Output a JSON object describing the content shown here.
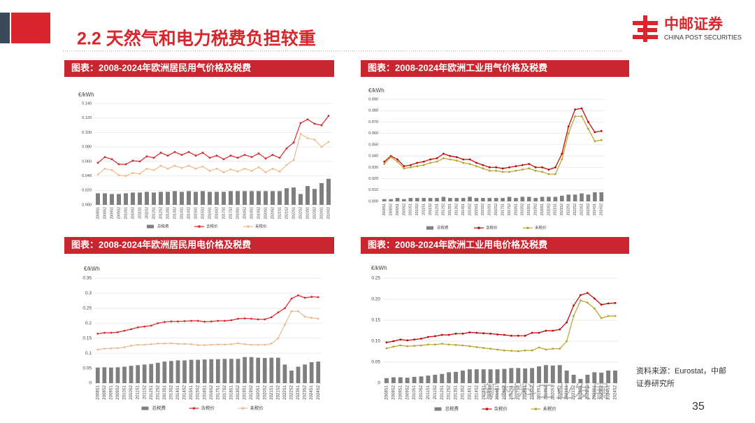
{
  "header": {
    "title": "2.2 天然气和电力税费负担较重",
    "logo": "中邮证券",
    "logo_en": "CHINA POST SECURITIES"
  },
  "source": "资料来源：Eurostat，中邮证券研究所",
  "page_number": "35",
  "watermark": "新材料工业发展",
  "chart_data": [
    {
      "type": "combo",
      "title": "图表：2008-2024年欧洲居民用气价格及税费",
      "ylabel": "€/kWh",
      "categories": [
        "2008S1",
        "2008S2",
        "2009S1",
        "2009S2",
        "2010S1",
        "2010S2",
        "2011S1",
        "2011S2",
        "2012S1",
        "2012S2",
        "2013S1",
        "2013S2",
        "2014S1",
        "2014S2",
        "2015S1",
        "2015S2",
        "2016S1",
        "2016S2",
        "2017S1",
        "2017S2",
        "2018S1",
        "2018S2",
        "2019S1",
        "2019S2",
        "2020S1",
        "2020S2",
        "2021S1",
        "2021S2",
        "2022S1",
        "2022S2",
        "2023S1",
        "2023S2",
        "2024S1",
        "2024S2"
      ],
      "ylim": [
        0,
        0.14
      ],
      "yticks": [
        {
          "value": 0,
          "label": "0.000"
        },
        {
          "value": 0.02,
          "label": "0.020"
        },
        {
          "value": 0.04,
          "label": "0.040"
        },
        {
          "value": 0.06,
          "label": "0.060"
        },
        {
          "value": 0.08,
          "label": "0.080"
        },
        {
          "value": 0.1,
          "label": "0.100"
        },
        {
          "value": 0.12,
          "label": "0.120"
        },
        {
          "value": 0.14,
          "label": "0.140"
        }
      ],
      "grid": true,
      "series": [
        {
          "name": "总税费",
          "type": "bar",
          "color": "#7f7f7f",
          "values": [
            0.016,
            0.016,
            0.015,
            0.015,
            0.016,
            0.017,
            0.017,
            0.018,
            0.017,
            0.018,
            0.018,
            0.019,
            0.018,
            0.019,
            0.018,
            0.019,
            0.018,
            0.018,
            0.018,
            0.019,
            0.019,
            0.019,
            0.019,
            0.019,
            0.019,
            0.019,
            0.019,
            0.023,
            0.024,
            0.015,
            0.026,
            0.022,
            0.03,
            0.036
          ]
        },
        {
          "name": "含税价",
          "type": "line",
          "color": "#d9252b",
          "values": [
            0.058,
            0.066,
            0.063,
            0.056,
            0.056,
            0.061,
            0.06,
            0.067,
            0.065,
            0.072,
            0.068,
            0.073,
            0.069,
            0.073,
            0.068,
            0.072,
            0.065,
            0.068,
            0.063,
            0.068,
            0.065,
            0.069,
            0.066,
            0.071,
            0.064,
            0.069,
            0.065,
            0.078,
            0.086,
            0.113,
            0.118,
            0.112,
            0.11,
            0.123
          ]
        },
        {
          "name": "未税价",
          "type": "line",
          "color": "#f0b98a",
          "values": [
            0.042,
            0.05,
            0.048,
            0.041,
            0.04,
            0.044,
            0.043,
            0.05,
            0.048,
            0.054,
            0.05,
            0.054,
            0.051,
            0.054,
            0.05,
            0.053,
            0.047,
            0.05,
            0.045,
            0.049,
            0.046,
            0.05,
            0.047,
            0.052,
            0.045,
            0.05,
            0.046,
            0.055,
            0.062,
            0.098,
            0.092,
            0.09,
            0.08,
            0.087
          ]
        }
      ]
    },
    {
      "type": "combo",
      "title": "图表：2008-2024年欧洲工业用气价格及税费",
      "ylabel": "€/kWh",
      "categories": [
        "2008S1",
        "2008S2",
        "2009S1",
        "2009S2",
        "2010S1",
        "2010S2",
        "2011S1",
        "2011S2",
        "2012S1",
        "2012S2",
        "2013S1",
        "2013S2",
        "2014S1",
        "2014S2",
        "2015S1",
        "2015S2",
        "2016S1",
        "2016S2",
        "2017S1",
        "2017S2",
        "2018S1",
        "2018S2",
        "2019S1",
        "2019S2",
        "2020S1",
        "2020S2",
        "2021S1",
        "2021S2",
        "2022S1",
        "2022S2",
        "2023S1",
        "2023S2",
        "2024S1",
        "2024S2"
      ],
      "ylim": [
        0,
        0.09
      ],
      "yticks": [
        {
          "value": 0,
          "label": "0.000"
        },
        {
          "value": 0.01,
          "label": "0.010"
        },
        {
          "value": 0.02,
          "label": "0.020"
        },
        {
          "value": 0.03,
          "label": "0.030"
        },
        {
          "value": 0.04,
          "label": "0.040"
        },
        {
          "value": 0.05,
          "label": "0.050"
        },
        {
          "value": 0.06,
          "label": "0.060"
        },
        {
          "value": 0.07,
          "label": "0.070"
        },
        {
          "value": 0.08,
          "label": "0.080"
        },
        {
          "value": 0.09,
          "label": "0.090"
        }
      ],
      "grid": true,
      "series": [
        {
          "name": "总税费",
          "type": "bar",
          "color": "#7f7f7f",
          "values": [
            0.002,
            0.002,
            0.003,
            0.002,
            0.003,
            0.003,
            0.003,
            0.003,
            0.003,
            0.004,
            0.003,
            0.003,
            0.003,
            0.004,
            0.003,
            0.003,
            0.003,
            0.003,
            0.003,
            0.004,
            0.003,
            0.004,
            0.004,
            0.003,
            0.004,
            0.004,
            0.004,
            0.005,
            0.006,
            0.006,
            0.007,
            0.006,
            0.008,
            0.008
          ]
        },
        {
          "name": "含税价",
          "type": "line",
          "color": "#c00000",
          "values": [
            0.035,
            0.04,
            0.037,
            0.031,
            0.032,
            0.034,
            0.035,
            0.037,
            0.038,
            0.042,
            0.04,
            0.039,
            0.037,
            0.037,
            0.034,
            0.032,
            0.03,
            0.03,
            0.029,
            0.03,
            0.031,
            0.032,
            0.033,
            0.03,
            0.03,
            0.028,
            0.03,
            0.042,
            0.066,
            0.081,
            0.082,
            0.07,
            0.061,
            0.062
          ]
        },
        {
          "name": "未税价",
          "type": "line",
          "color": "#b5a226",
          "values": [
            0.033,
            0.039,
            0.035,
            0.029,
            0.03,
            0.031,
            0.032,
            0.034,
            0.035,
            0.038,
            0.037,
            0.036,
            0.034,
            0.033,
            0.031,
            0.029,
            0.027,
            0.027,
            0.026,
            0.026,
            0.027,
            0.028,
            0.029,
            0.027,
            0.026,
            0.024,
            0.024,
            0.037,
            0.06,
            0.075,
            0.075,
            0.064,
            0.053,
            0.054
          ]
        }
      ]
    },
    {
      "type": "combo",
      "title": "图表：2008-2024年欧洲居民用电价格及税费",
      "ylabel": "€/kWh",
      "categories": [
        "2008S1",
        "2008S2",
        "2009S1",
        "2009S2",
        "2010S1",
        "2010S2",
        "2011S1",
        "2011S2",
        "2012S1",
        "2012S2",
        "2013S1",
        "2013S2",
        "2014S1",
        "2014S2",
        "2015S1",
        "2015S2",
        "2016S1",
        "2016S2",
        "2017S1",
        "2017S2",
        "2018S1",
        "2018S2",
        "2019S1",
        "2019S2",
        "2020S1",
        "2020S2",
        "2021S1",
        "2021S2",
        "2022S1",
        "2022S2",
        "2023S1",
        "2023S2",
        "2024S1",
        "2024S2"
      ],
      "ylim": [
        0,
        0.35
      ],
      "yticks": [
        0,
        0.05,
        0.1,
        0.15,
        0.2,
        0.25,
        0.3,
        0.35
      ],
      "grid": true,
      "series": [
        {
          "name": "总税费",
          "type": "bar",
          "color": "#7f7f7f",
          "values": [
            0.052,
            0.053,
            0.052,
            0.053,
            0.055,
            0.058,
            0.06,
            0.062,
            0.064,
            0.068,
            0.072,
            0.074,
            0.076,
            0.076,
            0.078,
            0.078,
            0.079,
            0.08,
            0.08,
            0.081,
            0.081,
            0.081,
            0.087,
            0.087,
            0.085,
            0.084,
            0.085,
            0.085,
            0.062,
            0.042,
            0.055,
            0.062,
            0.07,
            0.072
          ]
        },
        {
          "name": "含税价",
          "type": "line",
          "color": "#d9252b",
          "values": [
            0.165,
            0.168,
            0.168,
            0.17,
            0.175,
            0.18,
            0.186,
            0.189,
            0.192,
            0.2,
            0.204,
            0.206,
            0.206,
            0.207,
            0.208,
            0.208,
            0.205,
            0.206,
            0.208,
            0.208,
            0.21,
            0.215,
            0.216,
            0.215,
            0.213,
            0.213,
            0.22,
            0.236,
            0.25,
            0.282,
            0.293,
            0.285,
            0.288,
            0.287
          ]
        },
        {
          "name": "未税价",
          "type": "line",
          "color": "#e8b98c",
          "values": [
            0.112,
            0.115,
            0.116,
            0.117,
            0.12,
            0.125,
            0.128,
            0.128,
            0.13,
            0.132,
            0.132,
            0.133,
            0.131,
            0.131,
            0.13,
            0.127,
            0.127,
            0.128,
            0.129,
            0.129,
            0.13,
            0.133,
            0.13,
            0.128,
            0.128,
            0.128,
            0.132,
            0.15,
            0.195,
            0.24,
            0.24,
            0.222,
            0.218,
            0.215
          ]
        }
      ]
    },
    {
      "type": "combo",
      "title": "图表：2008-2024年欧洲工业用电价格及税费",
      "ylabel": "€/kWh",
      "categories": [
        "2008S1",
        "2008S2",
        "2009S1",
        "2009S2",
        "2010S1",
        "2010S2",
        "2011S1",
        "2011S2",
        "2012S1",
        "2012S2",
        "2013S1",
        "2013S2",
        "2014S1",
        "2014S2",
        "2015S1",
        "2015S2",
        "2016S1",
        "2016S2",
        "2017S1",
        "2017S2",
        "2018S1",
        "2018S2",
        "2019S1",
        "2019S2",
        "2020S1",
        "2020S2",
        "2021S1",
        "2021S2",
        "2022S1",
        "2022S2",
        "2023S1",
        "2023S2",
        "2024S1",
        "2024S2"
      ],
      "ylim": [
        0,
        0.25
      ],
      "yticks": [
        0,
        0.05,
        {
          "value": 0.1,
          "label": "0.10"
        },
        0.15,
        {
          "value": 0.2,
          "label": "0.20"
        },
        0.25
      ],
      "grid": true,
      "series": [
        {
          "name": "总税费",
          "type": "bar",
          "color": "#7f7f7f",
          "values": [
            0.012,
            0.014,
            0.014,
            0.013,
            0.015,
            0.016,
            0.018,
            0.02,
            0.022,
            0.026,
            0.027,
            0.03,
            0.033,
            0.033,
            0.033,
            0.033,
            0.033,
            0.034,
            0.036,
            0.036,
            0.035,
            0.036,
            0.04,
            0.043,
            0.042,
            0.043,
            0.03,
            0.02,
            0.01,
            0.02,
            0.026,
            0.025,
            0.03,
            0.03
          ]
        },
        {
          "name": "含税价",
          "type": "line",
          "color": "#c00000",
          "values": [
            0.097,
            0.1,
            0.104,
            0.102,
            0.104,
            0.106,
            0.11,
            0.112,
            0.115,
            0.115,
            0.118,
            0.118,
            0.121,
            0.12,
            0.119,
            0.118,
            0.116,
            0.115,
            0.113,
            0.113,
            0.113,
            0.12,
            0.12,
            0.125,
            0.125,
            0.128,
            0.145,
            0.185,
            0.21,
            0.215,
            0.202,
            0.187,
            0.19,
            0.191
          ]
        },
        {
          "name": "未税价",
          "type": "line",
          "color": "#b5a226",
          "values": [
            0.083,
            0.087,
            0.09,
            0.088,
            0.089,
            0.09,
            0.092,
            0.092,
            0.094,
            0.092,
            0.091,
            0.09,
            0.088,
            0.086,
            0.084,
            0.082,
            0.08,
            0.078,
            0.077,
            0.076,
            0.078,
            0.078,
            0.085,
            0.08,
            0.082,
            0.082,
            0.1,
            0.16,
            0.197,
            0.192,
            0.178,
            0.155,
            0.16,
            0.16
          ]
        }
      ]
    }
  ]
}
